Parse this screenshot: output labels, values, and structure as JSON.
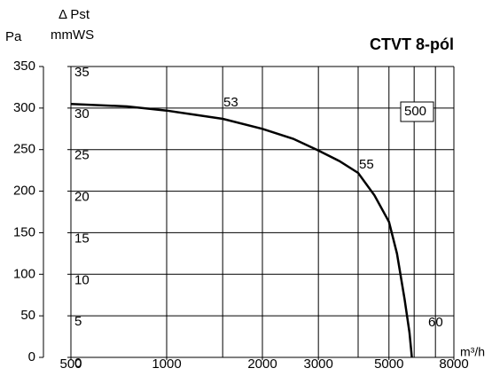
{
  "chart_data": {
    "type": "line",
    "title": "CTVT 8-pól",
    "y_label": "Pa",
    "y2_label_top": "Δ Pst",
    "y2_label": "mmWS",
    "x_label": "m³/h",
    "x_scale": "log",
    "xlim": [
      500,
      8000
    ],
    "xticks": [
      500,
      1000,
      2000,
      3000,
      5000,
      8000
    ],
    "xgrid": [
      1000,
      1500,
      2000,
      3000,
      4000,
      5000,
      6000,
      7000
    ],
    "ylim": [
      0,
      350
    ],
    "yticks": [
      0,
      50,
      100,
      150,
      200,
      250,
      300,
      350
    ],
    "y2lim": [
      0,
      35
    ],
    "y2ticks": [
      0,
      5,
      10,
      15,
      20,
      25,
      30,
      35
    ],
    "grid": true,
    "annotations": [
      "53",
      "55",
      "60",
      "500"
    ],
    "series": [
      {
        "color": "#000000",
        "x": [
          500,
          750,
          1000,
          1500,
          2000,
          2500,
          3000,
          3500,
          4000,
          4500,
          5000,
          5300,
          5600,
          5800,
          5900
        ],
        "values": [
          305,
          302,
          297,
          287,
          275,
          263,
          249,
          236,
          222,
          195,
          163,
          125,
          70,
          30,
          0
        ]
      }
    ]
  }
}
